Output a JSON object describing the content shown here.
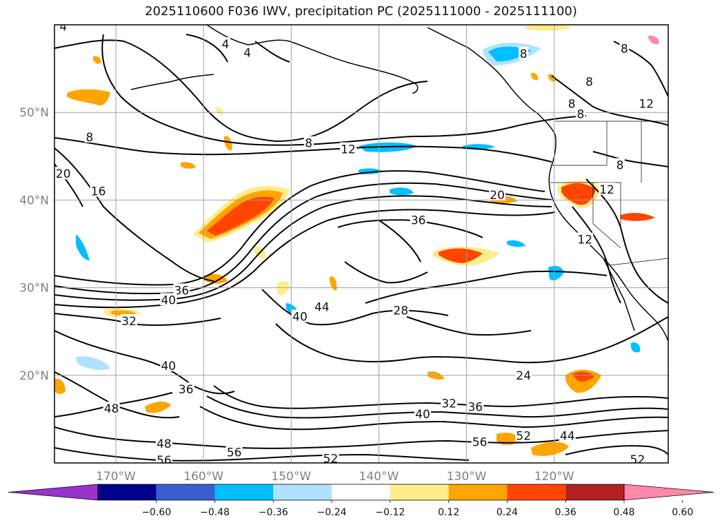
{
  "title": "2025110600 F036 IWV, precipitation PC (2025111000 - 2025111100)",
  "map": {
    "lat_ticks": [
      {
        "lat": 50,
        "label": "50°N"
      },
      {
        "lat": 40,
        "label": "40°N"
      },
      {
        "lat": 30,
        "label": "30°N"
      },
      {
        "lat": 20,
        "label": "20°N"
      }
    ],
    "lon_ticks": [
      {
        "lon": -170,
        "label": "170°W"
      },
      {
        "lon": -160,
        "label": "160°W"
      },
      {
        "lon": -150,
        "label": "150°W"
      },
      {
        "lon": -140,
        "label": "140°W"
      },
      {
        "lon": -130,
        "label": "130°W"
      },
      {
        "lon": -120,
        "label": "120°W"
      }
    ],
    "extent": {
      "lon_min": -177,
      "lon_max": -107,
      "lat_min": 10,
      "lat_max": 60
    },
    "iwv_contour_labels": [
      {
        "text": "4",
        "lon": -176,
        "lat": 59.8
      },
      {
        "text": "4",
        "lon": -157.5,
        "lat": 57.8
      },
      {
        "text": "4",
        "lon": -155,
        "lat": 56.8
      },
      {
        "text": "8",
        "lon": -173,
        "lat": 47.2
      },
      {
        "text": "8",
        "lon": -148,
        "lat": 46.5
      },
      {
        "text": "12",
        "lon": -143.5,
        "lat": 45.8
      },
      {
        "text": "8",
        "lon": -123.5,
        "lat": 56.7
      },
      {
        "text": "8",
        "lon": -116,
        "lat": 53.5
      },
      {
        "text": "8",
        "lon": -118,
        "lat": 51
      },
      {
        "text": "8",
        "lon": -117,
        "lat": 49.8
      },
      {
        "text": "8",
        "lon": -112,
        "lat": 57.3
      },
      {
        "text": "12",
        "lon": -109.5,
        "lat": 51
      },
      {
        "text": "8",
        "lon": -112.5,
        "lat": 44
      },
      {
        "text": "12",
        "lon": -114,
        "lat": 41.2
      },
      {
        "text": "20",
        "lon": -176,
        "lat": 43
      },
      {
        "text": "16",
        "lon": -172,
        "lat": 41
      },
      {
        "text": "20",
        "lon": -126.5,
        "lat": 40.6
      },
      {
        "text": "36",
        "lon": -135.5,
        "lat": 37.7
      },
      {
        "text": "12",
        "lon": -116.5,
        "lat": 35.5
      },
      {
        "text": "36",
        "lon": -162.5,
        "lat": 29.7
      },
      {
        "text": "40",
        "lon": -164,
        "lat": 28.6
      },
      {
        "text": "32",
        "lon": -168.5,
        "lat": 26.2
      },
      {
        "text": "40",
        "lon": -149,
        "lat": 26.7
      },
      {
        "text": "44",
        "lon": -146.5,
        "lat": 27.8
      },
      {
        "text": "28",
        "lon": -137.5,
        "lat": 27.4
      },
      {
        "text": "40",
        "lon": -164,
        "lat": 21.1
      },
      {
        "text": "36",
        "lon": -162,
        "lat": 18.4
      },
      {
        "text": "48",
        "lon": -170.5,
        "lat": 16.2
      },
      {
        "text": "24",
        "lon": -123.5,
        "lat": 20
      },
      {
        "text": "32",
        "lon": -132,
        "lat": 16.8
      },
      {
        "text": "36",
        "lon": -129,
        "lat": 16.4
      },
      {
        "text": "40",
        "lon": -135,
        "lat": 15.6
      },
      {
        "text": "48",
        "lon": -164.5,
        "lat": 12.2
      },
      {
        "text": "56",
        "lon": -156.5,
        "lat": 11.2
      },
      {
        "text": "56",
        "lon": -164.5,
        "lat": 10.3
      },
      {
        "text": "52",
        "lon": -145.5,
        "lat": 10.5
      },
      {
        "text": "56",
        "lon": -128.5,
        "lat": 12.4
      },
      {
        "text": "52",
        "lon": -123.5,
        "lat": 13.1
      },
      {
        "text": "44",
        "lon": -118.5,
        "lat": 13.1
      },
      {
        "text": "52",
        "lon": -110.5,
        "lat": 10.4
      }
    ]
  },
  "colorbar": {
    "colors": [
      "#9933cc",
      "#00008b",
      "#3a5fcd",
      "#00bfff",
      "#b0e2ff",
      "#ffffff",
      "#ffec8b",
      "#ffa500",
      "#ff4500",
      "#b22222",
      "#ff88aa"
    ],
    "labels": [
      "−0.60",
      "−0.48",
      "−0.36",
      "−0.24",
      "−0.12",
      "0.12",
      "0.24",
      "0.36",
      "0.48",
      "0.60"
    ]
  },
  "precip_colors": {
    "light_blue": "#b0e2ff",
    "blue": "#00bfff",
    "yellow": "#ffec8b",
    "orange": "#ffa500",
    "red": "#ff4500"
  }
}
